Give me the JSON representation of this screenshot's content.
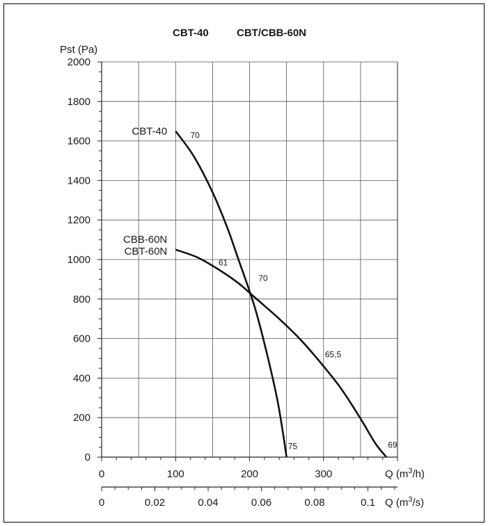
{
  "chart_data": {
    "type": "line",
    "title_left": "CBT-40",
    "title_right": "CBT/CBB-60N",
    "ylabel": "Pst (Pa)",
    "xlabel_prefix": "Q (m",
    "xlabel_sup": "3",
    "xlabel_suffix": "/h)",
    "x2label_prefix": "Q (m",
    "x2label_sup": "3",
    "x2label_suffix": "/s)",
    "ylim": [
      0,
      2000
    ],
    "xlim": [
      0,
      400
    ],
    "grid": true,
    "y_ticks": [
      "0",
      "200",
      "400",
      "600",
      "800",
      "1000",
      "1200",
      "1400",
      "1600",
      "1800",
      "2000"
    ],
    "x_ticks": [
      "0",
      "100",
      "200",
      "300"
    ],
    "x2_ticks": [
      "0",
      "0.02",
      "0.04",
      "0.06",
      "0.08",
      "0.1"
    ],
    "series": [
      {
        "name": "CBT-40",
        "label_lines": [
          "CBT-40"
        ],
        "points": [
          [
            100,
            1650
          ],
          [
            125,
            1520
          ],
          [
            150,
            1340
          ],
          [
            170,
            1160
          ],
          [
            185,
            1000
          ],
          [
            200,
            840
          ],
          [
            210,
            720
          ],
          [
            225,
            500
          ],
          [
            237,
            300
          ],
          [
            244,
            150
          ],
          [
            250,
            0
          ]
        ]
      },
      {
        "name": "CBB-60N / CBT-60N",
        "label_lines": [
          "CBB-60N",
          "CBT-60N"
        ],
        "points": [
          [
            100,
            1050
          ],
          [
            130,
            1010
          ],
          [
            160,
            945
          ],
          [
            185,
            880
          ],
          [
            205,
            815
          ],
          [
            240,
            700
          ],
          [
            270,
            590
          ],
          [
            300,
            460
          ],
          [
            325,
            340
          ],
          [
            350,
            195
          ],
          [
            370,
            70
          ],
          [
            385,
            0
          ]
        ]
      }
    ],
    "efficiency_labels": [
      {
        "text": "70",
        "x": 120,
        "y": 1615
      },
      {
        "text": "61",
        "x": 158,
        "y": 970
      },
      {
        "text": "70",
        "x": 212,
        "y": 890
      },
      {
        "text": "65,5",
        "x": 302,
        "y": 505
      },
      {
        "text": "75",
        "x": 252,
        "y": 40
      },
      {
        "text": "69",
        "x": 387,
        "y": 48
      }
    ]
  }
}
